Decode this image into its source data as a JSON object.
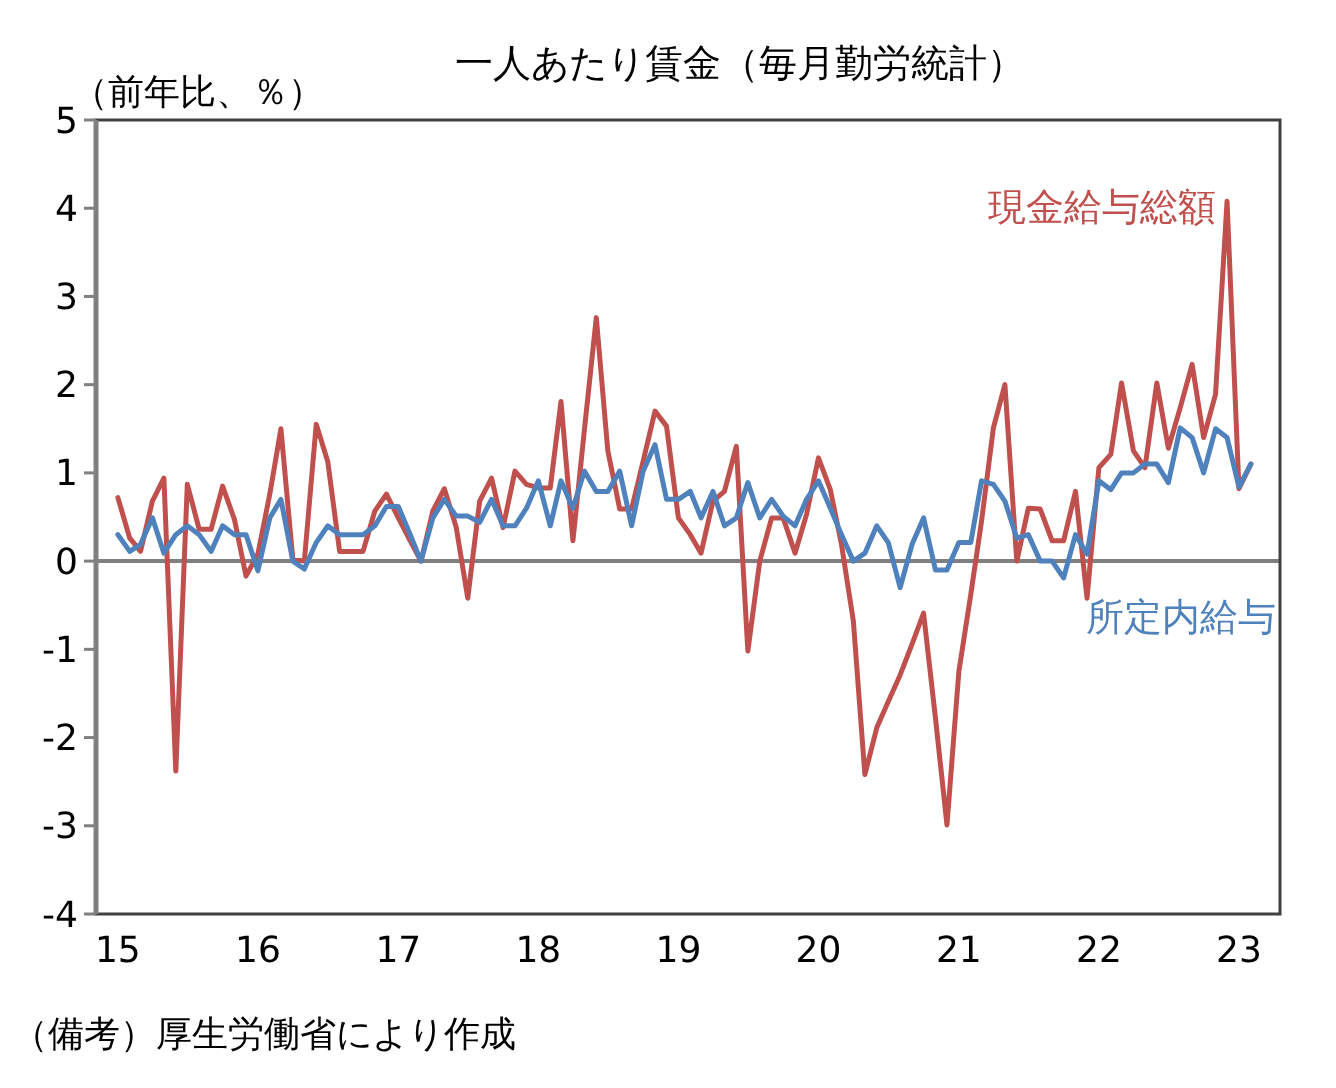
{
  "chart_data": {
    "type": "line",
    "title": "一人あたり賃金（毎月勤労統計）",
    "ylabel": "（前年比、％）",
    "annotations": [
      "（備考）厚生労働省により作成"
    ],
    "x": [
      "2015-01",
      "2015-02",
      "2015-03",
      "2015-04",
      "2015-05",
      "2015-06",
      "2015-07",
      "2015-08",
      "2015-09",
      "2015-10",
      "2015-11",
      "2015-12",
      "2016-01",
      "2016-02",
      "2016-03",
      "2016-04",
      "2016-05",
      "2016-06",
      "2016-07",
      "2016-08",
      "2016-09",
      "2016-10",
      "2016-11",
      "2016-12",
      "2017-01",
      "2017-02",
      "2017-03",
      "2017-04",
      "2017-05",
      "2017-06",
      "2017-07",
      "2017-08",
      "2017-09",
      "2017-10",
      "2017-11",
      "2017-12",
      "2018-01",
      "2018-02",
      "2018-03",
      "2018-04",
      "2018-05",
      "2018-06",
      "2018-07",
      "2018-08",
      "2018-09",
      "2018-10",
      "2018-11",
      "2018-12",
      "2019-01",
      "2019-02",
      "2019-03",
      "2019-04",
      "2019-05",
      "2019-06",
      "2019-07",
      "2019-08",
      "2019-09",
      "2019-10",
      "2019-11",
      "2019-12",
      "2020-01",
      "2020-02",
      "2020-03",
      "2020-04",
      "2020-05",
      "2020-06",
      "2020-07",
      "2020-08",
      "2020-09",
      "2020-10",
      "2020-11",
      "2020-12",
      "2021-01",
      "2021-02",
      "2021-03",
      "2021-04",
      "2021-05",
      "2021-06",
      "2021-07",
      "2021-08",
      "2021-09",
      "2021-10",
      "2021-11",
      "2021-12",
      "2022-01",
      "2022-02",
      "2022-03",
      "2022-04",
      "2022-05",
      "2022-06",
      "2022-07",
      "2022-08",
      "2022-09",
      "2022-10",
      "2022-11",
      "2022-12",
      "2023-01",
      "2023-02"
    ],
    "series": [
      {
        "name": "現金給与総額",
        "color": "#c0504d",
        "values": [
          0.72,
          0.26,
          0.11,
          0.68,
          0.94,
          -2.38,
          0.87,
          0.36,
          0.36,
          0.85,
          0.47,
          -0.17,
          0.08,
          0.76,
          1.5,
          0.02,
          0,
          1.55,
          1.13,
          0.11,
          0.11,
          0.11,
          0.57,
          0.76,
          0.49,
          0.23,
          0,
          0.57,
          0.82,
          0.38,
          -0.42,
          0.68,
          0.94,
          0.38,
          1.02,
          0.87,
          0.83,
          0.83,
          1.81,
          0.23,
          1.49,
          2.76,
          1.25,
          0.59,
          0.59,
          1.13,
          1.7,
          1.53,
          0.49,
          0.3,
          0.09,
          0.68,
          0.79,
          1.3,
          -1.02,
          0,
          0.49,
          0.49,
          0.09,
          0.53,
          1.17,
          0.81,
          0.19,
          -0.68,
          -2.42,
          -1.89,
          -1.59,
          -1.29,
          -0.94,
          -0.59,
          -1.78,
          -2.99,
          -1.25,
          -0.38,
          0.45,
          1.51,
          2.0,
          0,
          0.6,
          0.59,
          0.23,
          0.23,
          0.79,
          -0.42,
          1.06,
          1.21,
          2.02,
          1.25,
          1.06,
          2.02,
          1.28,
          1.74,
          2.23,
          1.4,
          1.89,
          4.08,
          0.82,
          1.1
        ]
      },
      {
        "name": "所定内給与",
        "color": "#4f81bd",
        "values": [
          0.3,
          0.11,
          0.19,
          0.49,
          0.09,
          0.3,
          0.4,
          0.3,
          0.11,
          0.4,
          0.3,
          0.3,
          -0.11,
          0.49,
          0.7,
          0,
          -0.09,
          0.21,
          0.4,
          0.3,
          0.3,
          0.3,
          0.4,
          0.62,
          0.62,
          0.3,
          0,
          0.49,
          0.7,
          0.51,
          0.51,
          0.44,
          0.7,
          0.4,
          0.4,
          0.6,
          0.91,
          0.4,
          0.91,
          0.6,
          1.02,
          0.79,
          0.79,
          1.02,
          0.4,
          1.02,
          1.32,
          0.7,
          0.7,
          0.79,
          0.49,
          0.79,
          0.4,
          0.49,
          0.89,
          0.49,
          0.7,
          0.51,
          0.4,
          0.7,
          0.91,
          0.6,
          0.3,
          0,
          0.09,
          0.4,
          0.21,
          -0.3,
          0.19,
          0.49,
          -0.1,
          -0.1,
          0.21,
          0.21,
          0.91,
          0.87,
          0.68,
          0.26,
          0.3,
          0,
          0,
          -0.19,
          0.3,
          0.08,
          0.91,
          0.81,
          1.0,
          1.0,
          1.1,
          1.1,
          0.89,
          1.51,
          1.4,
          1.0,
          1.5,
          1.4,
          0.84,
          1.1
        ]
      }
    ],
    "xlim": [
      "2014-11-05",
      "2023-04-18"
    ],
    "xticks": [
      {
        "value": "2015-01",
        "label": "15"
      },
      {
        "value": "2016-01",
        "label": "16"
      },
      {
        "value": "2017-01",
        "label": "17"
      },
      {
        "value": "2018-01",
        "label": "18"
      },
      {
        "value": "2019-01",
        "label": "19"
      },
      {
        "value": "2020-01",
        "label": "20"
      },
      {
        "value": "2021-01",
        "label": "21"
      },
      {
        "value": "2022-01",
        "label": "22"
      },
      {
        "value": "2023-01",
        "label": "23"
      }
    ],
    "ylim": [
      -4,
      5
    ],
    "yticks": [
      -4,
      -3,
      -2,
      -1,
      0,
      1,
      2,
      3,
      4,
      5
    ],
    "ref_lines": [
      {
        "axis": "y",
        "value": 0,
        "color": "#808080"
      }
    ],
    "grid": false,
    "legend": false,
    "marker": "none",
    "line_style": "solid"
  }
}
